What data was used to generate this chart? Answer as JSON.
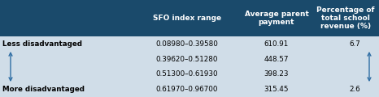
{
  "header_bg": "#1a4a6b",
  "header_text_color": "#ffffff",
  "body_bg": "#d0dde8",
  "body_text_color": "#000000",
  "col1_header": "SFO index range",
  "col2_header": "Average parent\npayment",
  "col3_header": "Percentage of\ntotal school\nrevenue (%)",
  "rows": [
    [
      "0.08980–0.39580",
      "610.91",
      "6.7"
    ],
    [
      "0.39620–0.51280",
      "448.57",
      ""
    ],
    [
      "0.51300–0.61930",
      "398.23",
      ""
    ],
    [
      "0.61970–0.96700",
      "315.45",
      "2.6"
    ]
  ],
  "label_less": "Less disadvantaged",
  "label_more": "More disadvantaged",
  "arrow_color": "#2e6da4",
  "figsize": [
    4.66,
    1.2
  ],
  "dpi": 100
}
